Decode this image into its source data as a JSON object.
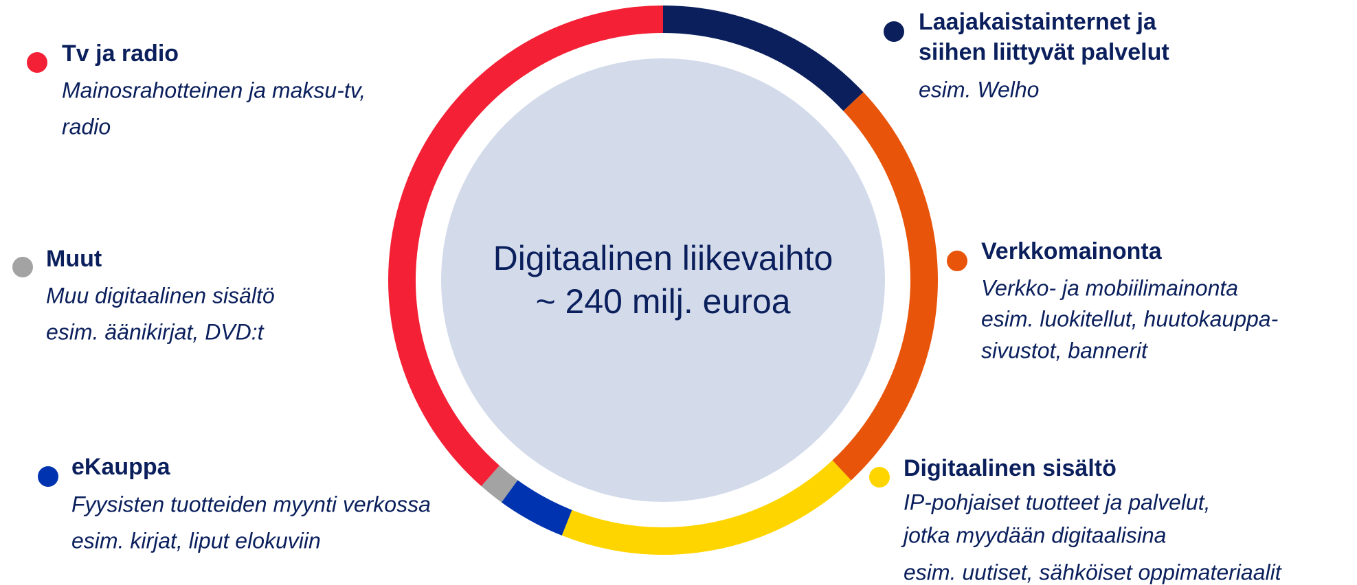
{
  "chart_data": {
    "type": "donut",
    "center_label": [
      "Digitaalinen liikevaihto",
      "~ 240 milj. euroa"
    ],
    "values": [
      13,
      25,
      18,
      4,
      1.5,
      38.5
    ],
    "colors": [
      "#0a1f5c",
      "#e8540a",
      "#ffd500",
      "#0033b0",
      "#a3a3a3",
      "#f42035"
    ],
    "labels": [
      {
        "title": [
          "Laajakaistainternet ja",
          "siihen liittyvät palvelut"
        ],
        "text": [
          "esim. Welho"
        ]
      },
      {
        "title": [
          "Verkkomainonta"
        ],
        "text": [
          "Verkko- ja mobiilimainonta",
          "esim. luokitellut, huutokauppa-",
          "sivustot, bannerit"
        ]
      },
      {
        "title": [
          "Digitaalinen sisältö"
        ],
        "text": [
          "IP-pohjaiset tuotteet ja palvelut,",
          "jotka myydään digitaalisina",
          "esim. uutiset, sähköiset oppimateriaalit"
        ]
      },
      {
        "title": [
          "eKauppa"
        ],
        "text": [
          "Fyysisten tuotteiden myynti verkossa",
          "esim. kirjat, liput elokuviin"
        ]
      },
      {
        "title": [
          "Muut"
        ],
        "text": [
          "Muu digitaalinen sisältö",
          "esim. äänikirjat, DVD:t"
        ]
      },
      {
        "title": [
          "Tv ja radio"
        ],
        "text": [
          "Mainosrahotteinen ja maksu-tv,",
          "radio"
        ]
      }
    ]
  }
}
